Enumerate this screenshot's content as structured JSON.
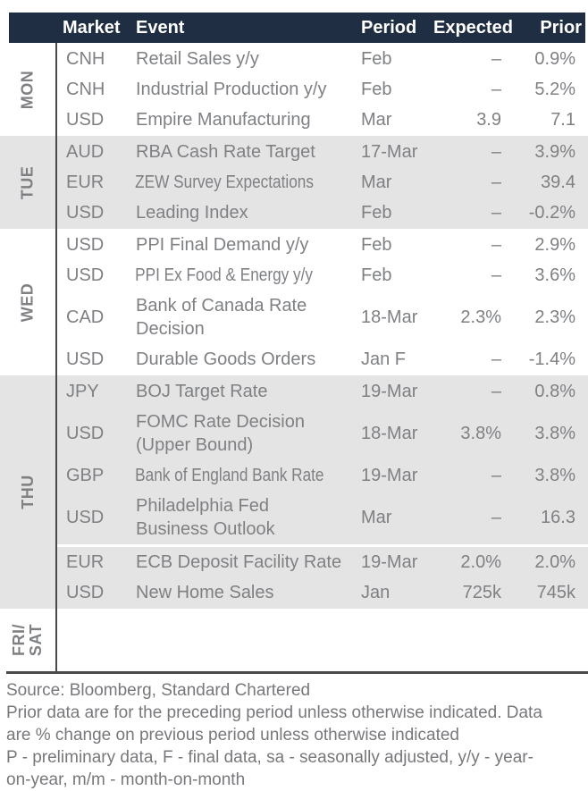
{
  "header": {
    "market": "Market",
    "event": "Event",
    "period": "Period",
    "expected": "Expected",
    "prior": "Prior"
  },
  "sections": [
    {
      "day": "MON",
      "rows": [
        {
          "market": "CNH",
          "event": "Retail Sales y/y",
          "period": "Feb",
          "expected": "–",
          "prior": "0.9%"
        },
        {
          "market": "CNH",
          "event": "Industrial Production y/y",
          "period": "Feb",
          "expected": "–",
          "prior": "5.2%"
        },
        {
          "market": "USD",
          "event": "Empire Manufacturing",
          "period": "Mar",
          "expected": "3.9",
          "prior": "7.1"
        }
      ]
    },
    {
      "day": "TUE",
      "rows": [
        {
          "market": "AUD",
          "event": "RBA Cash Rate Target",
          "period": "17-Mar",
          "expected": "–",
          "prior": "3.9%"
        },
        {
          "market": "EUR",
          "event": "ZEW Survey Expectations",
          "period": "Mar",
          "expected": "–",
          "prior": "39.4"
        },
        {
          "market": "USD",
          "event": "Leading Index",
          "period": "Feb",
          "expected": "–",
          "prior": "-0.2%"
        }
      ]
    },
    {
      "day": "WED",
      "rows": [
        {
          "market": "USD",
          "event": "PPI Final Demand y/y",
          "period": "Feb",
          "expected": "–",
          "prior": "2.9%"
        },
        {
          "market": "USD",
          "event": "PPI Ex Food & Energy y/y",
          "period": "Feb",
          "expected": "–",
          "prior": "3.6%"
        },
        {
          "market": "CAD",
          "event": "Bank of Canada Rate\nDecision",
          "period": "18-Mar",
          "expected": "2.3%",
          "prior": "2.3%"
        },
        {
          "market": "USD",
          "event": "Durable Goods Orders",
          "period": "Jan F",
          "expected": "–",
          "prior": "-1.4%"
        }
      ]
    },
    {
      "day": "THU",
      "rows": [
        {
          "market": "JPY",
          "event": "BOJ Target Rate",
          "period": "19-Mar",
          "expected": "–",
          "prior": "0.8%"
        },
        {
          "market": "USD",
          "event": "FOMC Rate Decision\n(Upper Bound)",
          "period": "18-Mar",
          "expected": "3.8%",
          "prior": "3.8%"
        },
        {
          "market": "GBP",
          "event": "Bank of England Bank Rate",
          "period": "19-Mar",
          "expected": "–",
          "prior": "3.8%"
        },
        {
          "market": "USD",
          "event": "Philadelphia Fed\nBusiness Outlook",
          "period": "Mar",
          "expected": "–",
          "prior": "16.3"
        },
        {
          "market": "EUR",
          "event": "ECB Deposit Facility Rate",
          "period": "19-Mar",
          "expected": "2.0%",
          "prior": "2.0%"
        },
        {
          "market": "USD",
          "event": "New Home Sales",
          "period": "Jan",
          "expected": "725k",
          "prior": "745k"
        }
      ]
    },
    {
      "day": "FRI/\nSAT",
      "rows": []
    }
  ],
  "footer": {
    "source": "Source: Bloomberg, Standard Chartered",
    "note1": "Prior data are for the preceding period unless otherwise indicated. Data\nare % change on previous period unless otherwise indicated",
    "note2": "P - preliminary data, F - final data, sa - seasonally adjusted, y/y - year-\non-year, m/m - month-on-month"
  },
  "colors": {
    "header_bg": "#1f2e43",
    "header_text": "#ffffff",
    "body_text": "#7e8083",
    "shaded_band_bg": "#e5e4e4",
    "rule": "#4a4a4a",
    "row_separator": "#ffffff"
  }
}
